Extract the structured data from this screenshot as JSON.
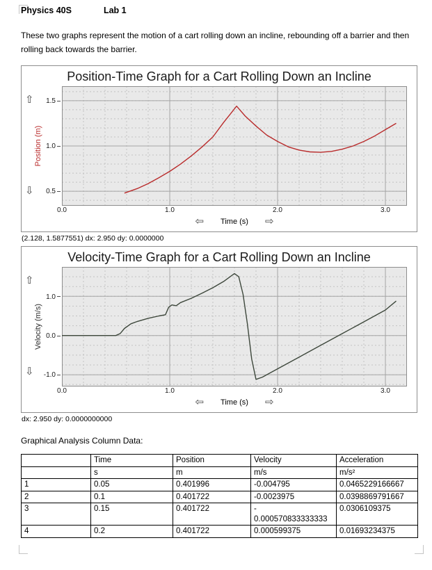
{
  "doc": {
    "course": "Physics 40S",
    "lab": "Lab 1",
    "intro": "These two graphs represent the motion of a cart rolling down an incline, rebounding off a barrier and then rolling back towards the barrier.",
    "table_caption": "Graphical Analysis Column Data:"
  },
  "icons": {
    "scroll_up": "⇧",
    "scroll_down": "⇩",
    "scroll_left": "⇦",
    "scroll_right": "⇨"
  },
  "graphs": [
    {
      "status": "(2.128, 1.5877551) dx: 2.950 dy: 0.0000000"
    },
    {
      "status": "dx: 2.950 dy: 0.0000000000"
    }
  ],
  "chart_data": [
    {
      "type": "line",
      "title": "Position-Time Graph for a Cart Rolling Down an Incline",
      "xlabel": "Time (s)",
      "ylabel": "Position (m)",
      "xlim": [
        0,
        3.2
      ],
      "ylim": [
        0.34,
        1.66
      ],
      "xticks": [
        0.0,
        1.0,
        2.0,
        3.0
      ],
      "yticks": [
        0.5,
        1.0,
        1.5
      ],
      "x_minor_step": 0.2,
      "y_minor_step": 0.1,
      "grid": true,
      "legend": "none",
      "line_color": "#b92b2b",
      "label_color": "#b92b2b",
      "bg_color": "#e9e9e9",
      "grid_minor_color": "#c2c2c2",
      "grid_major_color": "#a5a5a5",
      "border_color": "#8d8d8d",
      "series": [
        {
          "name": "Position",
          "x": [
            0.58,
            0.7,
            0.8,
            0.9,
            1.0,
            1.1,
            1.2,
            1.3,
            1.4,
            1.5,
            1.56,
            1.62,
            1.7,
            1.8,
            1.9,
            2.0,
            2.1,
            2.2,
            2.3,
            2.4,
            2.5,
            2.6,
            2.7,
            2.8,
            2.9,
            3.0,
            3.1
          ],
          "y": [
            0.48,
            0.53,
            0.585,
            0.65,
            0.72,
            0.8,
            0.89,
            0.99,
            1.1,
            1.26,
            1.35,
            1.44,
            1.33,
            1.22,
            1.12,
            1.05,
            0.99,
            0.955,
            0.935,
            0.93,
            0.94,
            0.965,
            1.0,
            1.05,
            1.11,
            1.18,
            1.25
          ]
        }
      ]
    },
    {
      "type": "line",
      "title": "Velocity-Time Graph for a Cart Rolling Down an Incline",
      "xlabel": "Time (s)",
      "ylabel": "Velocity (m/s)",
      "xlim": [
        0,
        3.2
      ],
      "ylim": [
        -1.3,
        1.75
      ],
      "xticks": [
        0.0,
        1.0,
        2.0,
        3.0
      ],
      "yticks": [
        -1.0,
        0.0,
        1.0
      ],
      "x_minor_step": 0.2,
      "y_minor_step": 0.25,
      "grid": true,
      "legend": "none",
      "line_color": "#3d473b",
      "label_color": "#2b2b2b",
      "bg_color": "#e9e9e9",
      "grid_minor_color": "#c2c2c2",
      "grid_major_color": "#a5a5a5",
      "border_color": "#8d8d8d",
      "series": [
        {
          "name": "Velocity",
          "x": [
            0.0,
            0.5,
            0.54,
            0.58,
            0.64,
            0.7,
            0.8,
            0.9,
            0.96,
            0.99,
            1.02,
            1.06,
            1.1,
            1.2,
            1.3,
            1.4,
            1.5,
            1.56,
            1.6,
            1.64,
            1.68,
            1.72,
            1.76,
            1.8,
            1.86,
            2.0,
            2.2,
            2.4,
            2.6,
            2.8,
            3.0,
            3.1
          ],
          "y": [
            0.0,
            0.0,
            0.05,
            0.18,
            0.3,
            0.36,
            0.44,
            0.5,
            0.53,
            0.72,
            0.78,
            0.76,
            0.84,
            0.95,
            1.08,
            1.22,
            1.38,
            1.5,
            1.58,
            1.5,
            1.05,
            0.3,
            -0.6,
            -1.12,
            -1.06,
            -0.85,
            -0.55,
            -0.25,
            0.05,
            0.35,
            0.65,
            0.88
          ]
        }
      ]
    }
  ],
  "table": {
    "headers": [
      "",
      "Time",
      "Position",
      "Velocity",
      "Acceleration"
    ],
    "units": [
      "",
      "s",
      "m",
      "m/s",
      "m/s²"
    ],
    "rows": [
      [
        "1",
        "0.05",
        "0.401996",
        "-0.004795",
        "0.0465229166667"
      ],
      [
        "2",
        "0.1",
        "0.401722",
        "-0.0023975",
        "0.0398869791667"
      ],
      [
        "3",
        "0.15",
        "0.401722",
        "-\n0.000570833333333",
        "0.0306109375"
      ],
      [
        "4",
        "0.2",
        "0.401722",
        "0.000599375",
        "0.01693234375"
      ]
    ]
  }
}
